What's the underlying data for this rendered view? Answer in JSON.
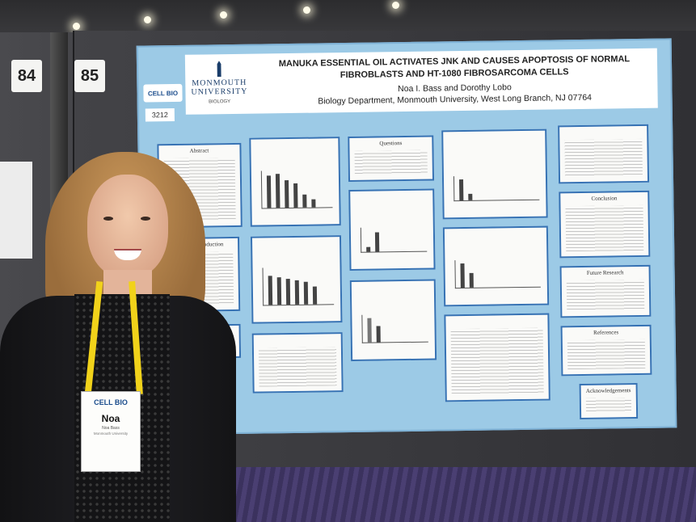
{
  "booth_numbers": [
    "84",
    "85"
  ],
  "poster": {
    "cellbio_logo": "CELL BIO",
    "number": "3212",
    "university_logo": {
      "name_line1": "MONMOUTH",
      "name_line2": "UNIVERSITY",
      "dept": "BIOLOGY"
    },
    "title": "MANUKA ESSENTIAL OIL ACTIVATES JNK AND CAUSES APOPTOSIS OF NORMAL FIBROBLASTS AND HT-1080 FIBROSARCOMA CELLS",
    "authors": "Noa I. Bass and Dorothy Lobo",
    "affiliation": "Biology Department, Monmouth University, West Long Branch, NJ 07764",
    "sections": {
      "abstract": "Abstract",
      "introduction": "Introduction",
      "questions": "Questions",
      "conclusion": "Conclusion",
      "future_research": "Future Research",
      "references": "References",
      "acknowledgements": "Acknowledgements"
    }
  },
  "badge": {
    "logo": "CELL BIO",
    "first_name": "Noa",
    "full_name": "Noa Bass",
    "org": "Monmouth University"
  }
}
